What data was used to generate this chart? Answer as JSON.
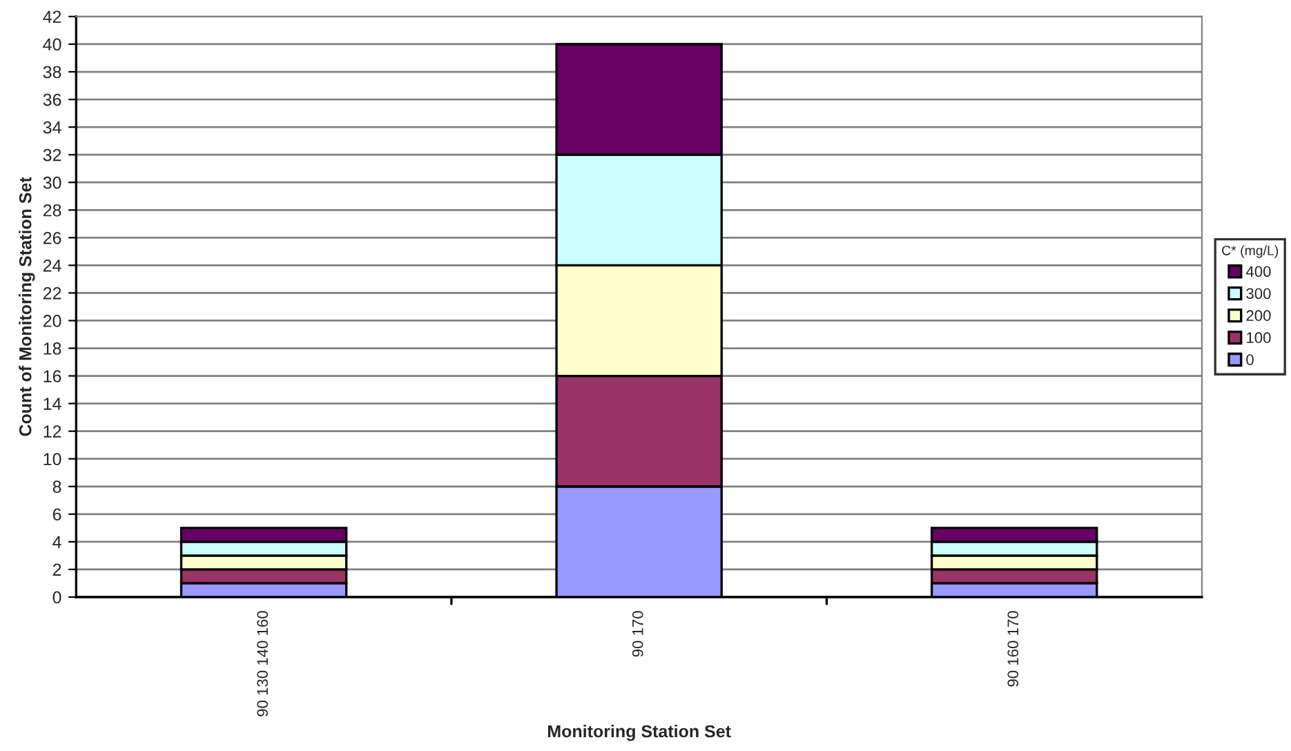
{
  "chart_data": {
    "type": "bar",
    "stacked": true,
    "xlabel": "Monitoring Station Set",
    "ylabel": "Count of Monitoring Station Set",
    "legend_title": "C* (mg/L)",
    "categories": [
      "90 130 140 160",
      "90 170",
      "90 160 170"
    ],
    "series": [
      {
        "name": "0",
        "color": "#9999ff",
        "values": [
          1,
          8,
          1
        ]
      },
      {
        "name": "100",
        "color": "#993366",
        "values": [
          1,
          8,
          1
        ]
      },
      {
        "name": "200",
        "color": "#ffffcc",
        "values": [
          1,
          8,
          1
        ]
      },
      {
        "name": "300",
        "color": "#ccffff",
        "values": [
          1,
          8,
          1
        ]
      },
      {
        "name": "400",
        "color": "#660066",
        "values": [
          1,
          8,
          1
        ]
      }
    ],
    "ylim": [
      0,
      42
    ],
    "yticks": [
      0,
      2,
      4,
      6,
      8,
      10,
      12,
      14,
      16,
      18,
      20,
      22,
      24,
      26,
      28,
      30,
      32,
      34,
      36,
      38,
      40,
      42
    ],
    "grid": "y",
    "legend": "right"
  }
}
